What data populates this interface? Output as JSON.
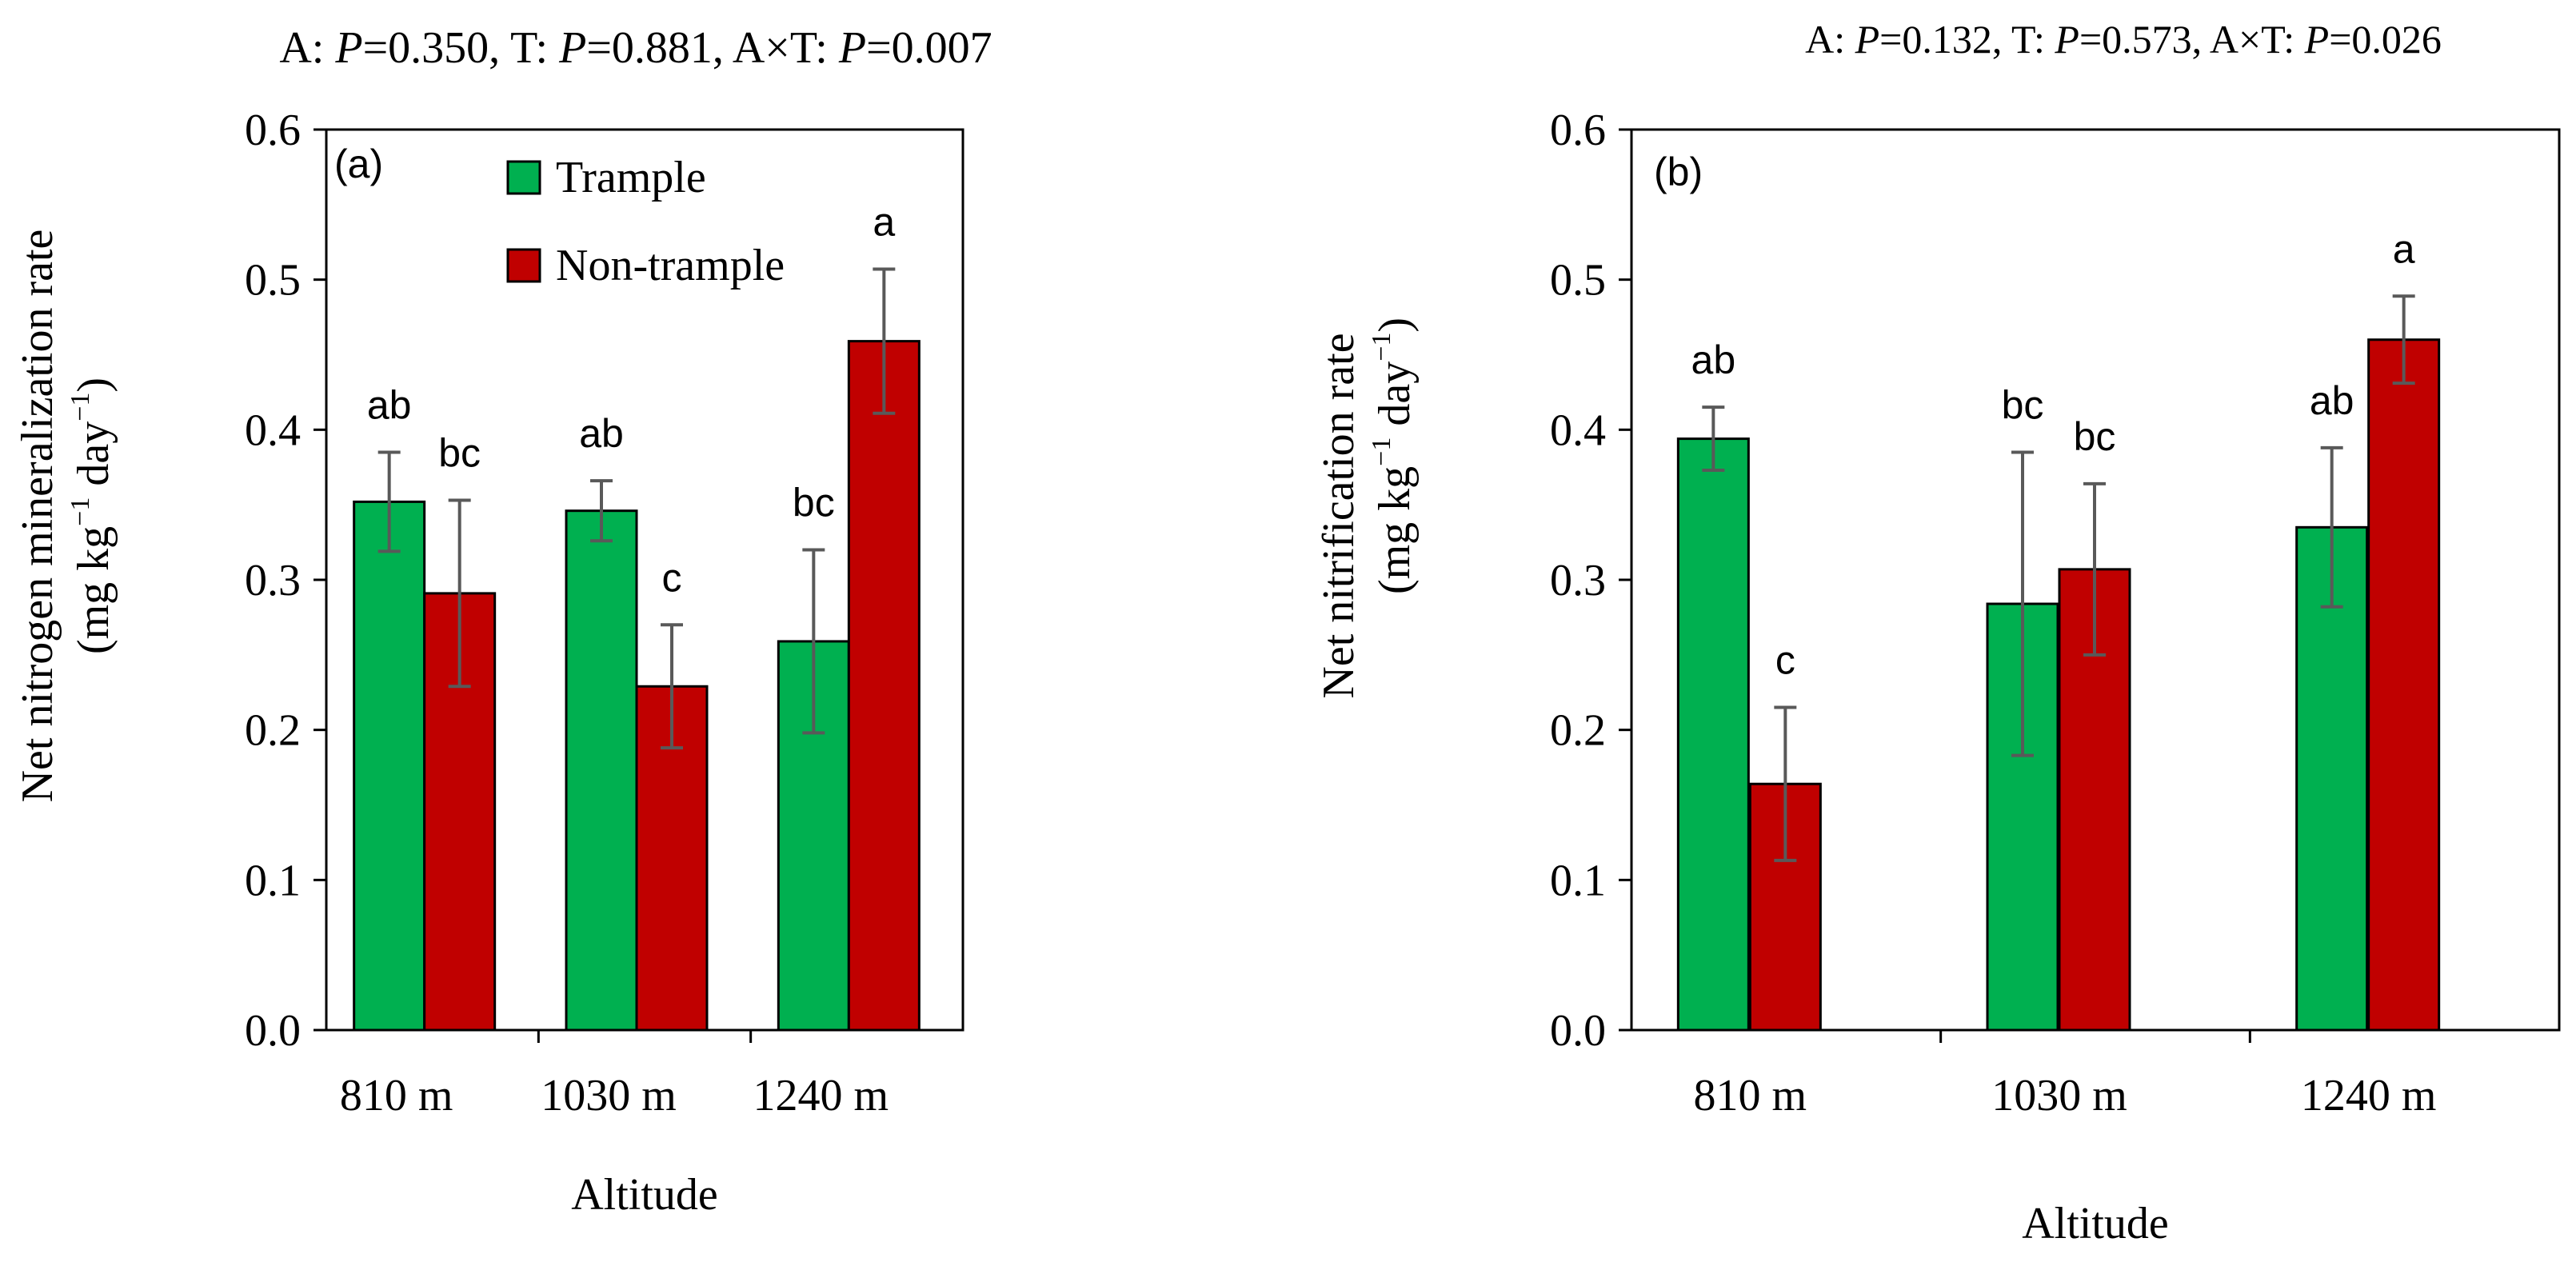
{
  "chart_data": [
    {
      "id": "a",
      "type": "bar",
      "panel_label": "(a)",
      "stats": [
        {
          "label": "A: ",
          "p_symbol": "P",
          "value": "=0.350, "
        },
        {
          "label": "T: ",
          "p_symbol": "P",
          "value": "=0.881, "
        },
        {
          "label": "A×T: ",
          "p_symbol": "P",
          "value": "=0.007"
        }
      ],
      "ylabel_line1": "Net nitrogen mineralization rate",
      "ylabel_line2": {
        "pre": "(mg kg",
        "sup1": "−1",
        "mid": " day",
        "sup2": "−1",
        "post": ")"
      },
      "xlabel": "Altitude",
      "categories": [
        "810 m",
        "1030 m",
        "1240 m"
      ],
      "ylim": [
        0,
        0.6
      ],
      "yticks": [
        "0.0",
        "0.1",
        "0.2",
        "0.3",
        "0.4",
        "0.5",
        "0.6"
      ],
      "legend": [
        "Trample",
        "Non-trample"
      ],
      "series": [
        {
          "name": "Trample",
          "color": "#00b050",
          "values": [
            0.352,
            0.346,
            0.259
          ],
          "errors": [
            0.033,
            0.02,
            0.061
          ],
          "letters": [
            "ab",
            "ab",
            "bc"
          ]
        },
        {
          "name": "Non-trample",
          "color": "#c00000",
          "values": [
            0.291,
            0.229,
            0.459
          ],
          "errors": [
            0.062,
            0.041,
            0.048
          ],
          "letters": [
            "bc",
            "c",
            "a"
          ]
        }
      ]
    },
    {
      "id": "b",
      "type": "bar",
      "panel_label": "(b)",
      "stats": [
        {
          "label": "A: ",
          "p_symbol": "P",
          "value": "=0.132, "
        },
        {
          "label": "T: ",
          "p_symbol": "P",
          "value": "=0.573, "
        },
        {
          "label": "A×T: ",
          "p_symbol": "P",
          "value": "=0.026"
        }
      ],
      "ylabel_line1": "Net nitrification rate",
      "ylabel_line2": {
        "pre": "(mg kg",
        "sup1": "−1",
        "mid": " day",
        "sup2": "−1",
        "post": ")"
      },
      "xlabel": "Altitude",
      "categories": [
        "810 m",
        "1030 m",
        "1240 m"
      ],
      "ylim": [
        0,
        0.6
      ],
      "yticks": [
        "0.0",
        "0.1",
        "0.2",
        "0.3",
        "0.4",
        "0.5",
        "0.6"
      ],
      "series": [
        {
          "name": "Trample",
          "color": "#00b050",
          "values": [
            0.394,
            0.284,
            0.335
          ],
          "errors": [
            0.021,
            0.101,
            0.053
          ],
          "letters": [
            "ab",
            "bc",
            "ab"
          ]
        },
        {
          "name": "Non-trample",
          "color": "#c00000",
          "values": [
            0.164,
            0.307,
            0.46
          ],
          "errors": [
            0.051,
            0.057,
            0.029
          ],
          "letters": [
            "c",
            "bc",
            "a"
          ]
        }
      ]
    }
  ]
}
